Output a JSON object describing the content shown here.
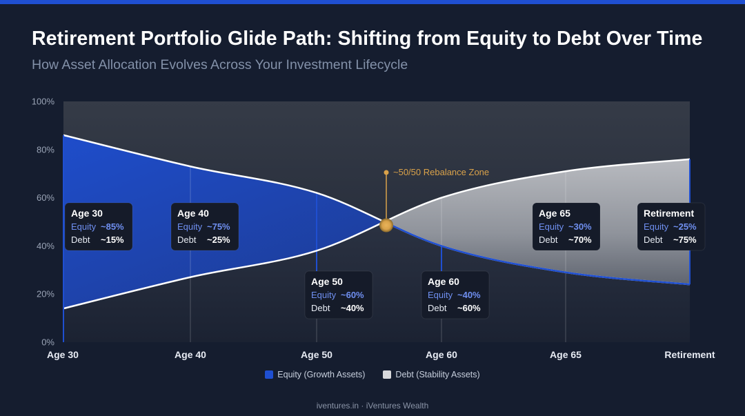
{
  "title": "Retirement Portfolio Glide Path: Shifting from Equity to Debt Over Time",
  "subtitle": "How Asset Allocation Evolves Across Your Investment Lifecycle",
  "footer": "iventures.in · iVentures Wealth",
  "colors": {
    "background": "#151d2f",
    "equity": "#1f4fd1",
    "debt": "#d8d9dc",
    "equity_text": "#6f8ff0",
    "marker": "#d9a24a",
    "top_bar": "#1f4fd1"
  },
  "chart_data": {
    "type": "area",
    "title": "Retirement Portfolio Glide Path: Shifting from Equity to Debt Over Time",
    "x_categories": [
      "Age 30",
      "Age 40",
      "Age 50",
      "Age 60",
      "Age 65",
      "Retirement"
    ],
    "y_ticks": [
      "0%",
      "20%",
      "40%",
      "60%",
      "80%",
      "100%"
    ],
    "ylim": [
      0,
      100
    ],
    "grid": true,
    "series": [
      {
        "name": "Equity (Growth Assets)",
        "color": "#1f4fd1",
        "values": [
          86,
          73,
          62,
          40,
          29,
          24
        ]
      },
      {
        "name": "Debt (Stability Assets)",
        "color": "#d8d9dc",
        "values": [
          14,
          27,
          38,
          60,
          71,
          76
        ]
      }
    ],
    "crossover": {
      "label": "~50/50 Rebalance Zone",
      "value": 50
    },
    "callouts": [
      {
        "age": "Age 30",
        "equity_label": "Equity",
        "equity": "~85%",
        "debt_label": "Debt",
        "debt": "~15%"
      },
      {
        "age": "Age 40",
        "equity_label": "Equity",
        "equity": "~75%",
        "debt_label": "Debt",
        "debt": "~25%"
      },
      {
        "age": "Age 50",
        "equity_label": "Equity",
        "equity": "~60%",
        "debt_label": "Debt",
        "debt": "~40%"
      },
      {
        "age": "Age 60",
        "equity_label": "Equity",
        "equity": "~40%",
        "debt_label": "Debt",
        "debt": "~60%"
      },
      {
        "age": "Age 65",
        "equity_label": "Equity",
        "equity": "~30%",
        "debt_label": "Debt",
        "debt": "~70%"
      },
      {
        "age": "Retirement",
        "equity_label": "Equity",
        "equity": "~25%",
        "debt_label": "Debt",
        "debt": "~75%"
      }
    ],
    "legend": [
      {
        "label": "Equity (Growth Assets)",
        "color": "#1f4fd1"
      },
      {
        "label": "Debt (Stability Assets)",
        "color": "#d8d9dc"
      }
    ],
    "legend_position": "bottom"
  }
}
